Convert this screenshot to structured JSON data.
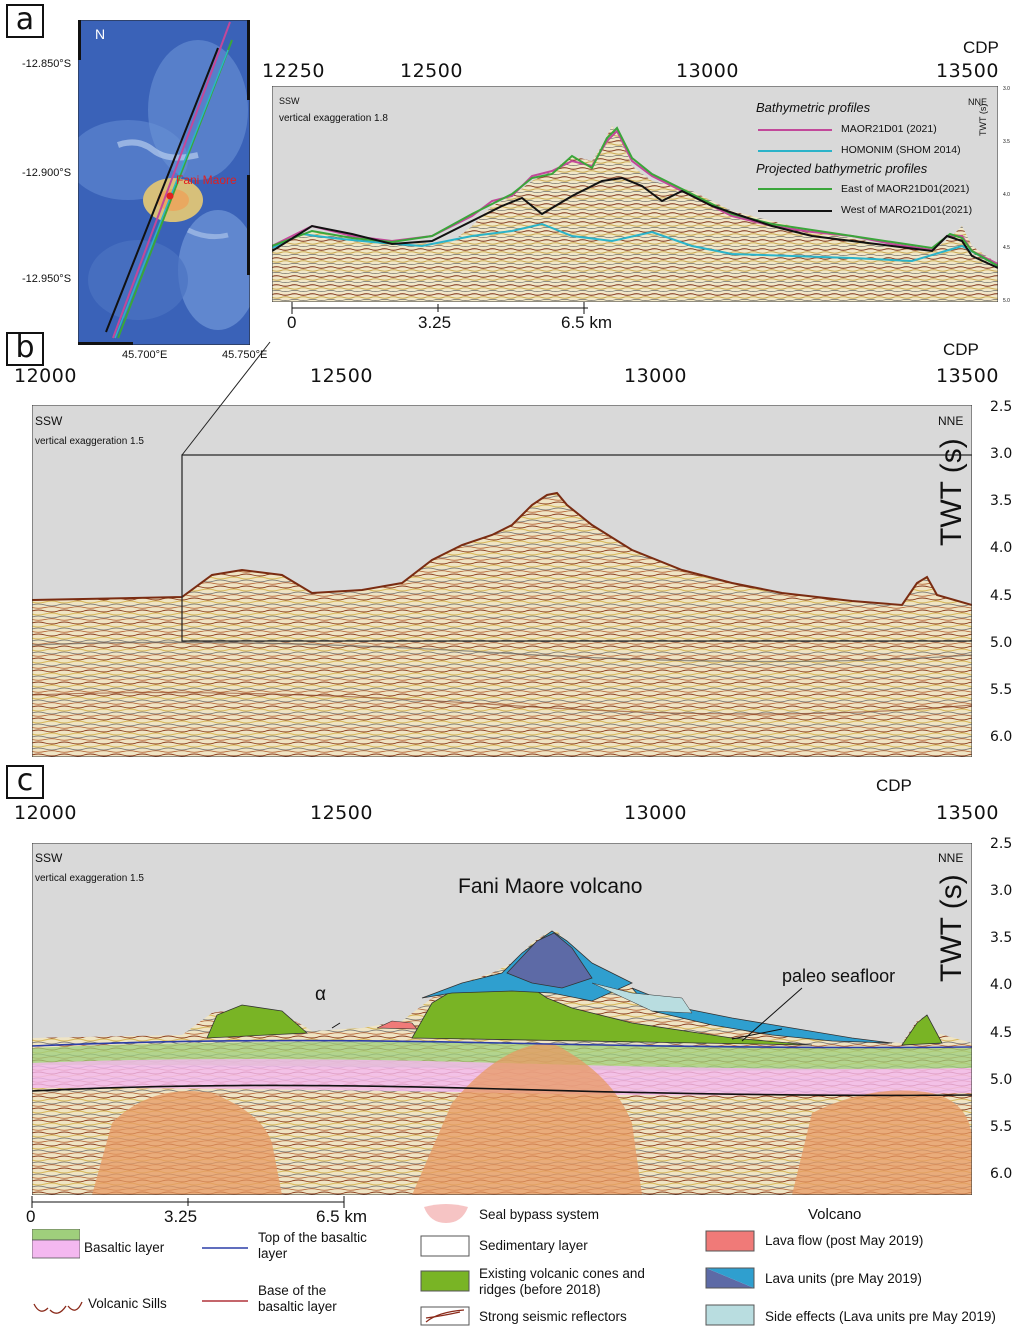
{
  "panels": {
    "a": {
      "letter": "a",
      "map": {
        "north": "N",
        "lat_labels": [
          "-12.850°S",
          "-12.900°S",
          "-12.950°S"
        ],
        "lon_labels": [
          "45.700°E",
          "45.750°E"
        ],
        "site_label": "Fani Maore"
      },
      "cdp_title": "CDP",
      "cdp_ticks": [
        "12250",
        "12500",
        "13000",
        "13500"
      ],
      "left_dir": "SSW",
      "right_dir": "NNE",
      "exaggeration": "vertical exaggeration 1.8",
      "twt_label": "TWT (s)",
      "twt_ticks": [
        "3.0",
        "3.5",
        "4.0",
        "4.5",
        "5.0"
      ],
      "km_ticks": [
        "0",
        "3.25",
        "6.5 km"
      ],
      "legend": {
        "group1": "Bathymetric profiles",
        "group2": "Projected bathymetric profiles",
        "items": [
          {
            "label": "MAOR21D01 (2021)",
            "color": "#c2489a"
          },
          {
            "label": "HOMONIM (SHOM 2014)",
            "color": "#2bb3c9"
          },
          {
            "label": "East of MAOR21D01(2021)",
            "color": "#3aa63a"
          },
          {
            "label": "West of MARO21D01(2021)",
            "color": "#111111"
          }
        ]
      }
    },
    "b": {
      "letter": "b",
      "cdp_title": "CDP",
      "cdp_ticks": [
        "12000",
        "12500",
        "13000",
        "13500"
      ],
      "left_dir": "SSW",
      "right_dir": "NNE",
      "exaggeration": "vertical exaggeration 1.5",
      "twt_label": "TWT (s)",
      "twt_ticks": [
        "2.5",
        "3.0",
        "3.5",
        "4.0",
        "4.5",
        "5.0",
        "5.5",
        "6.0"
      ]
    },
    "c": {
      "letter": "c",
      "cdp_title": "CDP",
      "cdp_ticks": [
        "12000",
        "12500",
        "13000",
        "13500"
      ],
      "left_dir": "SSW",
      "right_dir": "NNE",
      "exaggeration": "vertical exaggeration 1.5",
      "title": "Fani Maore volcano",
      "twt_label": "TWT (s)",
      "twt_ticks": [
        "2.5",
        "3.0",
        "3.5",
        "4.0",
        "4.5",
        "5.0",
        "5.5",
        "6.0"
      ],
      "km_ticks": [
        "0",
        "3.25",
        "6.5 km"
      ],
      "alpha": "α",
      "paleo": "paleo seafloor"
    }
  },
  "legend": {
    "basaltic_layer": "Basaltic layer",
    "top_basaltic": "Top of the basaltic layer",
    "base_basaltic": "Base of the basaltic layer",
    "volcanic_sills": "Volcanic Sills",
    "seal_bypass": "Seal bypass system",
    "sedimentary": "Sedimentary layer",
    "existing_cones": "Existing volcanic cones and ridges (before 2018)",
    "strong_reflectors": "Strong seismic reflectors",
    "volcano_title": "Volcano",
    "lava_flow": "Lava flow (post May 2019)",
    "lava_units": "Lava units (pre May 2019)",
    "side_effects": "Side effects (Lava units pre May 2019)"
  },
  "colors": {
    "water": "#d9d9d9",
    "seismic_bg": "#efe6c8",
    "basaltic_green": "#9fcf7c",
    "basaltic_pink": "#f4b8f0",
    "sills_orange": "#e79a63",
    "cones_green": "#79b425",
    "lava_red": "#f07a78",
    "lava_blue": "#2f9fcf",
    "lava_navy": "#5d6aa6",
    "side_teal": "#b9dde0"
  }
}
